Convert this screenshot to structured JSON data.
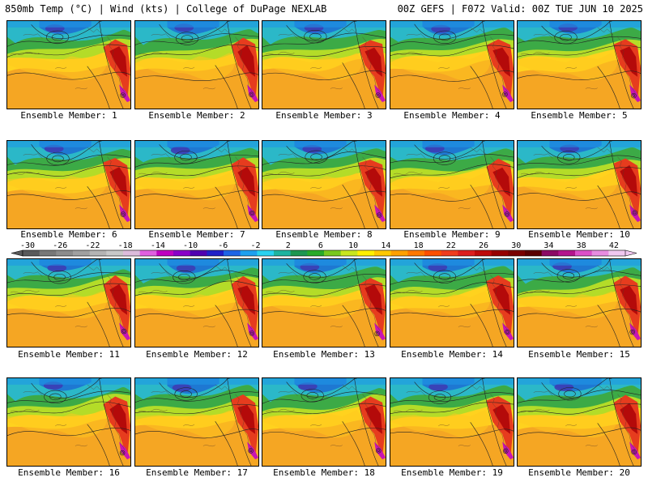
{
  "header": {
    "left_title": "850mb Temp (°C) | Wind (kts) | College of DuPage NEXLAB",
    "right_title": "00Z GEFS | F072 Valid: 00Z TUE JUN 10 2025"
  },
  "member_prefix": "Ensemble Member:",
  "members": [
    {
      "label": "Ensemble Member: 1"
    },
    {
      "label": "Ensemble Member: 2"
    },
    {
      "label": "Ensemble Member: 3"
    },
    {
      "label": "Ensemble Member: 4"
    },
    {
      "label": "Ensemble Member: 5"
    },
    {
      "label": "Ensemble Member: 6"
    },
    {
      "label": "Ensemble Member: 7"
    },
    {
      "label": "Ensemble Member: 8"
    },
    {
      "label": "Ensemble Member: 9"
    },
    {
      "label": "Ensemble Member: 10"
    },
    {
      "label": "Ensemble Member: 11"
    },
    {
      "label": "Ensemble Member: 12"
    },
    {
      "label": "Ensemble Member: 13"
    },
    {
      "label": "Ensemble Member: 14"
    },
    {
      "label": "Ensemble Member: 15"
    },
    {
      "label": "Ensemble Member: 16"
    },
    {
      "label": "Ensemble Member: 17"
    },
    {
      "label": "Ensemble Member: 18"
    },
    {
      "label": "Ensemble Member: 19"
    },
    {
      "label": "Ensemble Member: 20"
    }
  ],
  "colorbar": {
    "tick_labels": [
      "-30",
      "-26",
      "-22",
      "-18",
      "-14",
      "-10",
      "-6",
      "-2",
      "2",
      "6",
      "10",
      "14",
      "18",
      "22",
      "26",
      "30",
      "34",
      "38",
      "42"
    ],
    "colors": [
      "#5a5a5a",
      "#787878",
      "#8c8c8c",
      "#a0a0a0",
      "#b4b4b4",
      "#c8c8c8",
      "#dcbcdc",
      "#e060e0",
      "#c000c0",
      "#8a00c8",
      "#5000b0",
      "#2020c8",
      "#1e64e6",
      "#1ea0f0",
      "#28d2f0",
      "#1eb4a0",
      "#1e9650",
      "#28aa28",
      "#78c81e",
      "#c8e61e",
      "#fff000",
      "#ffc800",
      "#ffa000",
      "#ff7800",
      "#ff5000",
      "#f03c1e",
      "#dc1e1e",
      "#be0a0a",
      "#960000",
      "#7a0000",
      "#5a0000",
      "#8c0a64",
      "#b4148c",
      "#dc50c8",
      "#e88ce0",
      "#f0c8f0"
    ]
  }
}
